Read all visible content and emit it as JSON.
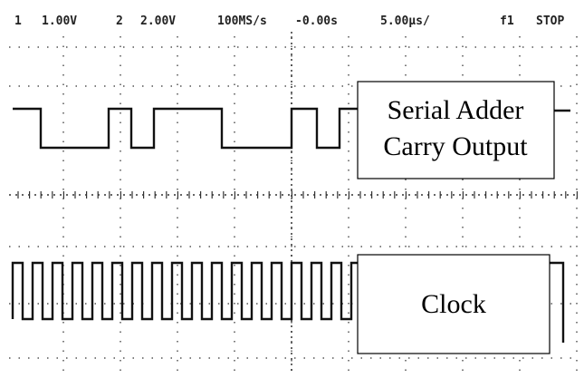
{
  "header": {
    "ch1": "1",
    "ch1_scale": "1.00V",
    "ch2": "2",
    "ch2_scale": "2.00V",
    "sample_rate": "100MS/s",
    "trigger_time": "-0.00s",
    "time_scale": "5.00µs/",
    "trigger_source": "f1",
    "status": "STOP"
  },
  "labels": {
    "carry_line1": "Serial Adder",
    "carry_line2": "Carry Output",
    "clock": "Clock"
  }
}
